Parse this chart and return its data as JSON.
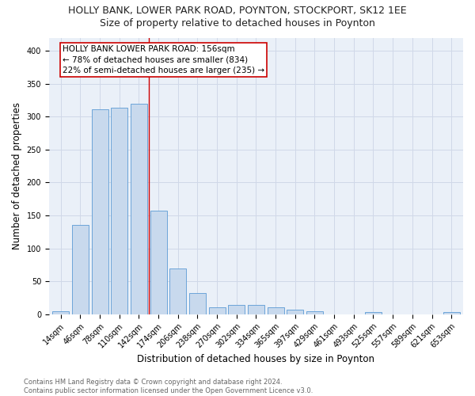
{
  "title": "HOLLY BANK, LOWER PARK ROAD, POYNTON, STOCKPORT, SK12 1EE",
  "subtitle": "Size of property relative to detached houses in Poynton",
  "xlabel": "Distribution of detached houses by size in Poynton",
  "ylabel": "Number of detached properties",
  "bar_color": "#c8d9ed",
  "bar_edge_color": "#5b9bd5",
  "categories": [
    "14sqm",
    "46sqm",
    "78sqm",
    "110sqm",
    "142sqm",
    "174sqm",
    "206sqm",
    "238sqm",
    "270sqm",
    "302sqm",
    "334sqm",
    "365sqm",
    "397sqm",
    "429sqm",
    "461sqm",
    "493sqm",
    "525sqm",
    "557sqm",
    "589sqm",
    "621sqm",
    "653sqm"
  ],
  "values": [
    4,
    136,
    311,
    313,
    320,
    157,
    70,
    32,
    11,
    14,
    14,
    10,
    7,
    4,
    0,
    0,
    3,
    0,
    0,
    0,
    3
  ],
  "ylim": [
    0,
    420
  ],
  "yticks": [
    0,
    50,
    100,
    150,
    200,
    250,
    300,
    350,
    400
  ],
  "vline_x": 4.5,
  "vline_color": "#cc0000",
  "annotation_line1": "HOLLY BANK LOWER PARK ROAD: 156sqm",
  "annotation_line2": "← 78% of detached houses are smaller (834)",
  "annotation_line3": "22% of semi-detached houses are larger (235) →",
  "footer_text": "Contains HM Land Registry data © Crown copyright and database right 2024.\nContains public sector information licensed under the Open Government Licence v3.0.",
  "bg_color": "#ffffff",
  "grid_color": "#d0d8e8",
  "title_fontsize": 9,
  "subtitle_fontsize": 9,
  "label_fontsize": 8.5,
  "tick_fontsize": 7,
  "annotation_fontsize": 7.5,
  "footer_fontsize": 6
}
